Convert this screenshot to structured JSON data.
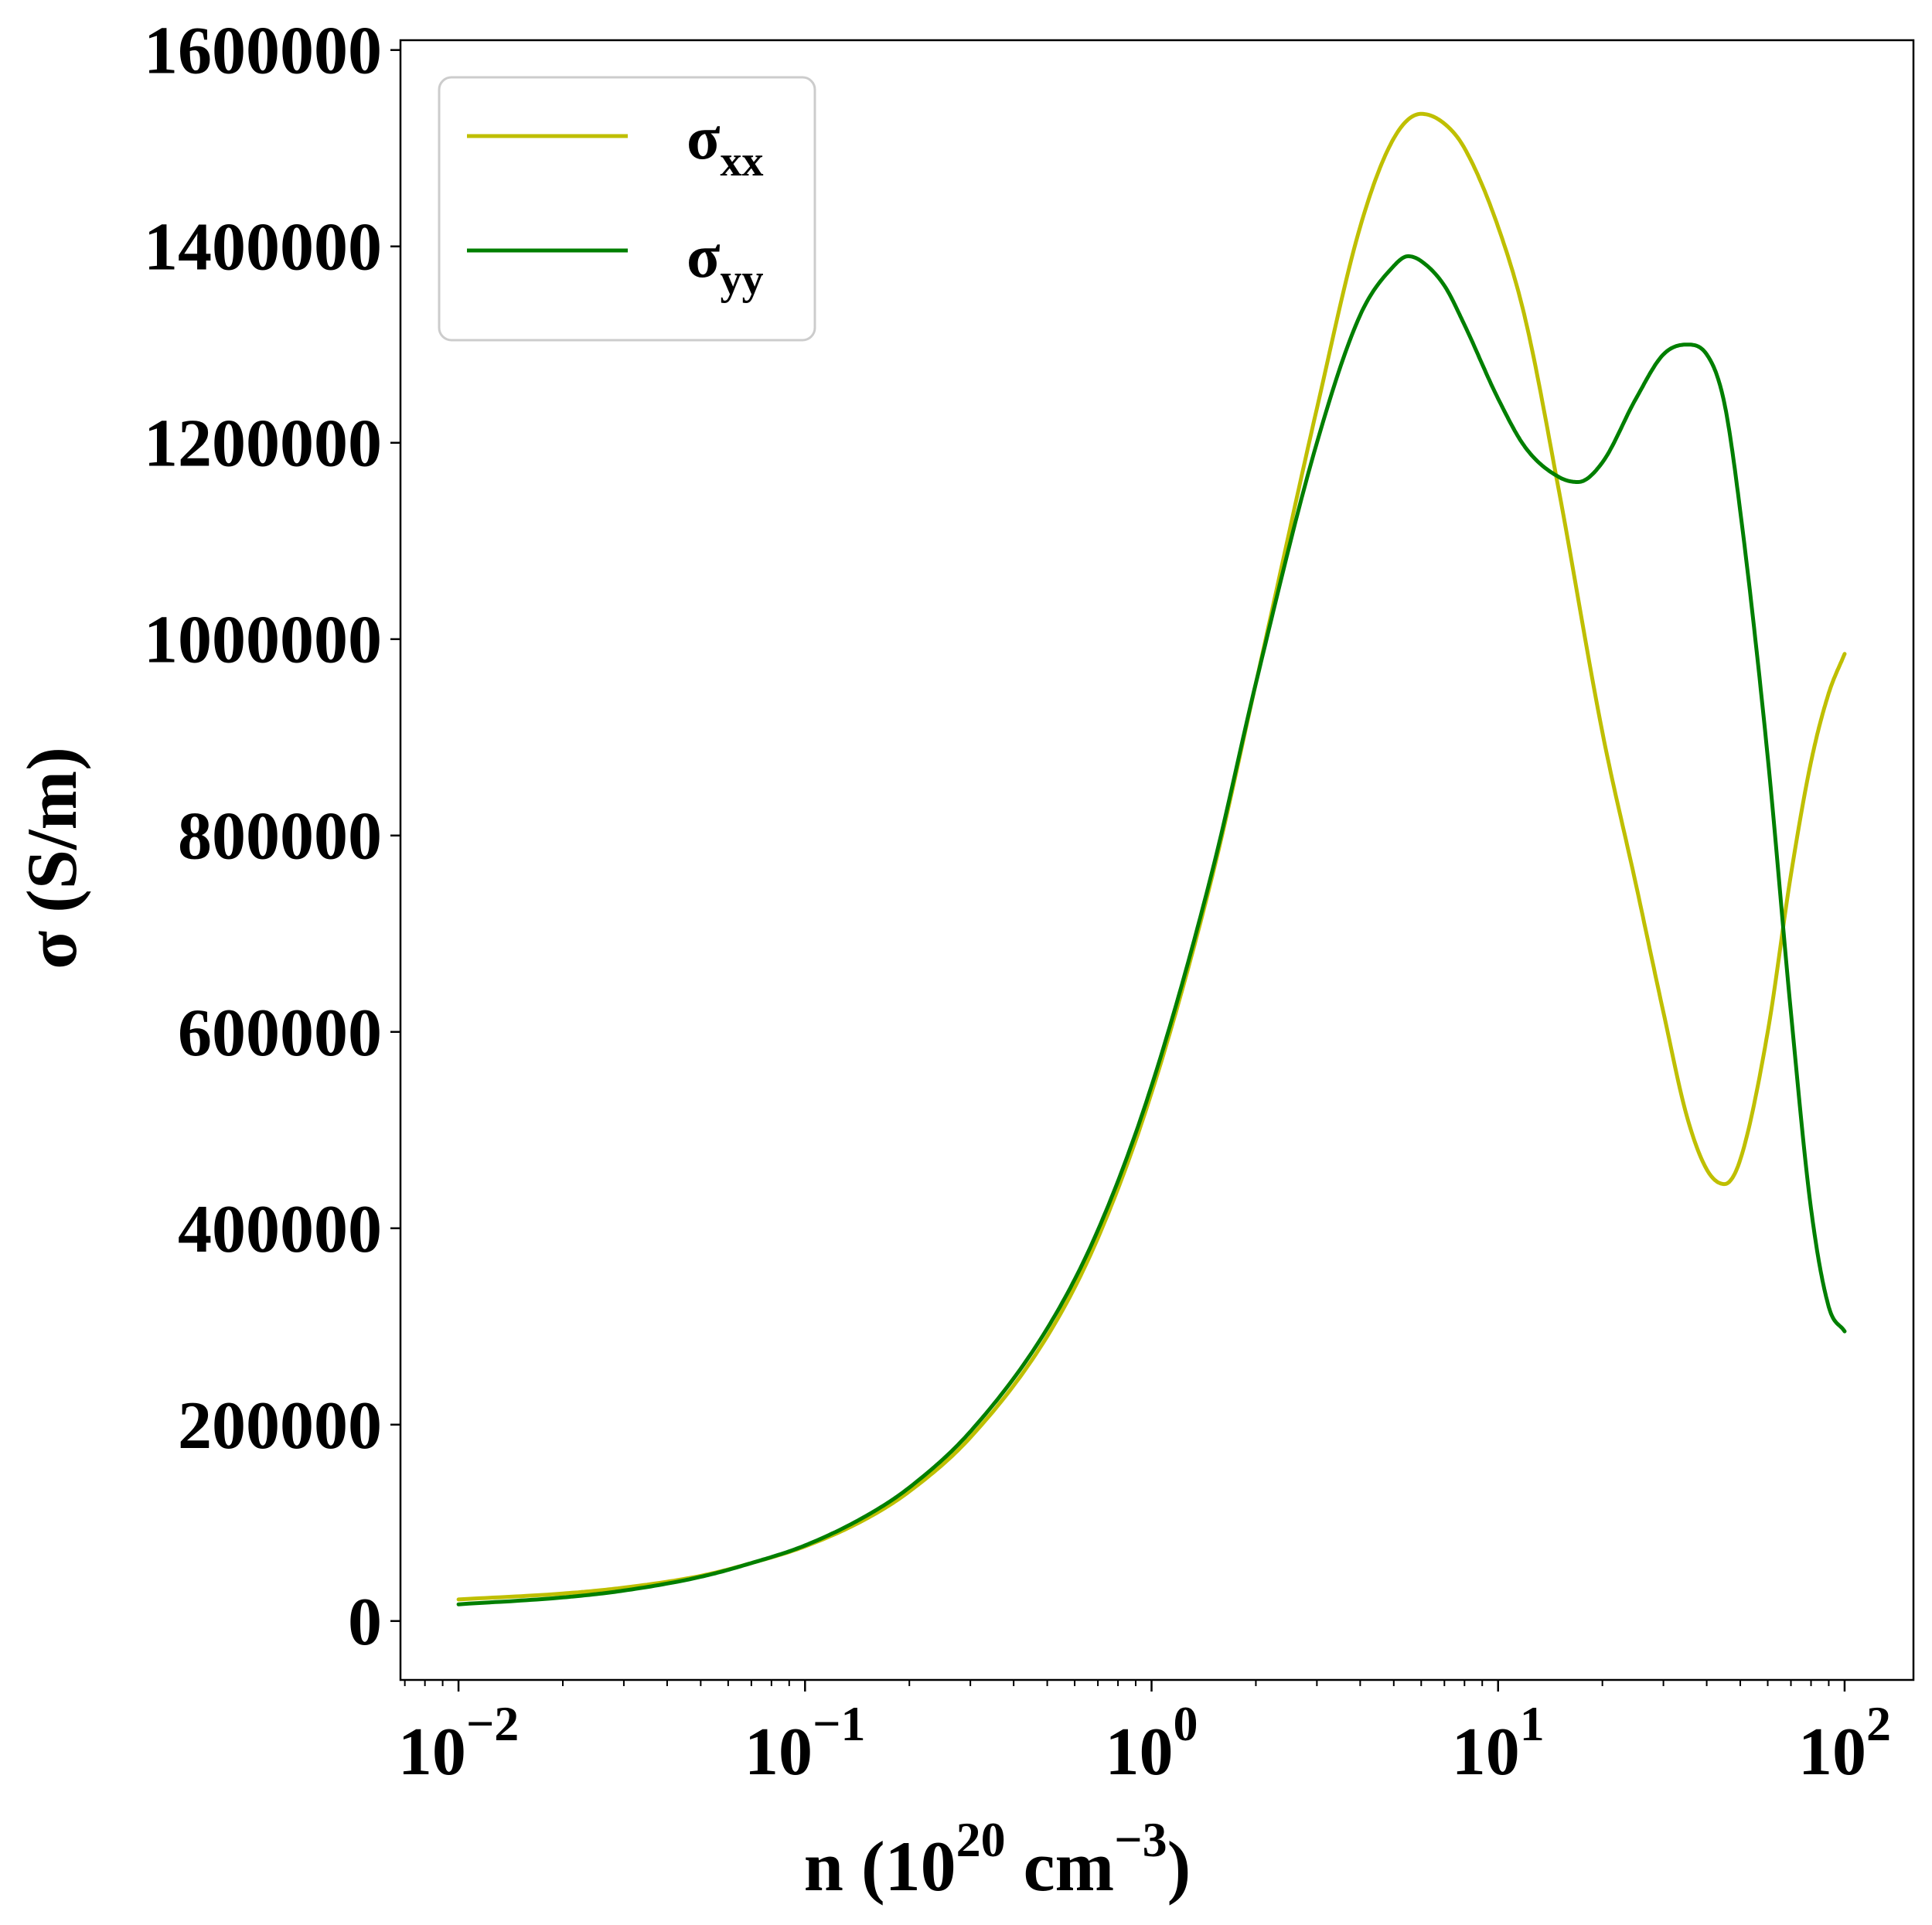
{
  "chart_data": {
    "type": "line",
    "xscale": "log",
    "xlim": [
      0.0068,
      158
    ],
    "ylim": [
      -60000,
      1610000
    ],
    "grid": false,
    "legend_position": "top-left",
    "xlabel": {
      "prefix": "n (10",
      "exp1": "20",
      "mid": " cm",
      "exp2": "−3",
      "suffix": ")"
    },
    "ylabel": "σ (S/m)",
    "yticks": [
      0,
      200000,
      400000,
      600000,
      800000,
      1000000,
      1200000,
      1400000,
      1600000
    ],
    "ytick_labels": [
      "0",
      "200000",
      "400000",
      "600000",
      "800000",
      "1000000",
      "1200000",
      "1400000",
      "1600000"
    ],
    "xticks": [
      {
        "value": 0.01,
        "base": "10",
        "exp": "−2"
      },
      {
        "value": 0.1,
        "base": "10",
        "exp": "−1"
      },
      {
        "value": 1,
        "base": "10",
        "exp": "0"
      },
      {
        "value": 10,
        "base": "10",
        "exp": "1"
      },
      {
        "value": 100,
        "base": "10",
        "exp": "2"
      }
    ],
    "series": [
      {
        "name": "σxx",
        "label_main": "σ",
        "label_sub": "xx",
        "color": "#bfbf00",
        "x": [
          0.01,
          0.02,
          0.03,
          0.05,
          0.07,
          0.1,
          0.15,
          0.2,
          0.3,
          0.5,
          0.7,
          1.0,
          1.5,
          2.0,
          3.0,
          4.0,
          5.0,
          6.0,
          7.0,
          8.0,
          10.0,
          12.0,
          15.0,
          20.0,
          25.0,
          30.0,
          35.0,
          40.0,
          45.0,
          50.0,
          60.0,
          70.0,
          80.0,
          90.0,
          100.0
        ],
        "y": [
          22000,
          28000,
          34000,
          46000,
          59000,
          76000,
          104000,
          132000,
          187000,
          290000,
          390000,
          538000,
          760000,
          955000,
          1235000,
          1420000,
          1510000,
          1535000,
          1525000,
          1500000,
          1420000,
          1325000,
          1150000,
          905000,
          750000,
          620000,
          515000,
          460000,
          445000,
          470000,
          600000,
          760000,
          875000,
          945000,
          985000
        ]
      },
      {
        "name": "σyy",
        "label_main": "σ",
        "label_sub": "yy",
        "color": "#007f00",
        "x": [
          0.01,
          0.02,
          0.03,
          0.05,
          0.07,
          0.1,
          0.15,
          0.2,
          0.3,
          0.5,
          0.7,
          1.0,
          1.5,
          2.0,
          3.0,
          4.0,
          5.0,
          5.5,
          6.0,
          7.0,
          8.0,
          10.0,
          12.0,
          15.0,
          17.0,
          20.0,
          25.0,
          30.0,
          35.0,
          40.0,
          45.0,
          50.0,
          60.0,
          70.0,
          80.0,
          90.0,
          100.0
        ],
        "y": [
          17000,
          24000,
          31000,
          45000,
          59000,
          77000,
          107000,
          136000,
          193000,
          298000,
          398000,
          545000,
          765000,
          955000,
          1200000,
          1330000,
          1380000,
          1390000,
          1385000,
          1360000,
          1320000,
          1245000,
          1195000,
          1165000,
          1160000,
          1180000,
          1245000,
          1290000,
          1300000,
          1290000,
          1240000,
          1130000,
          880000,
          620000,
          420000,
          320000,
          295000
        ]
      }
    ]
  }
}
